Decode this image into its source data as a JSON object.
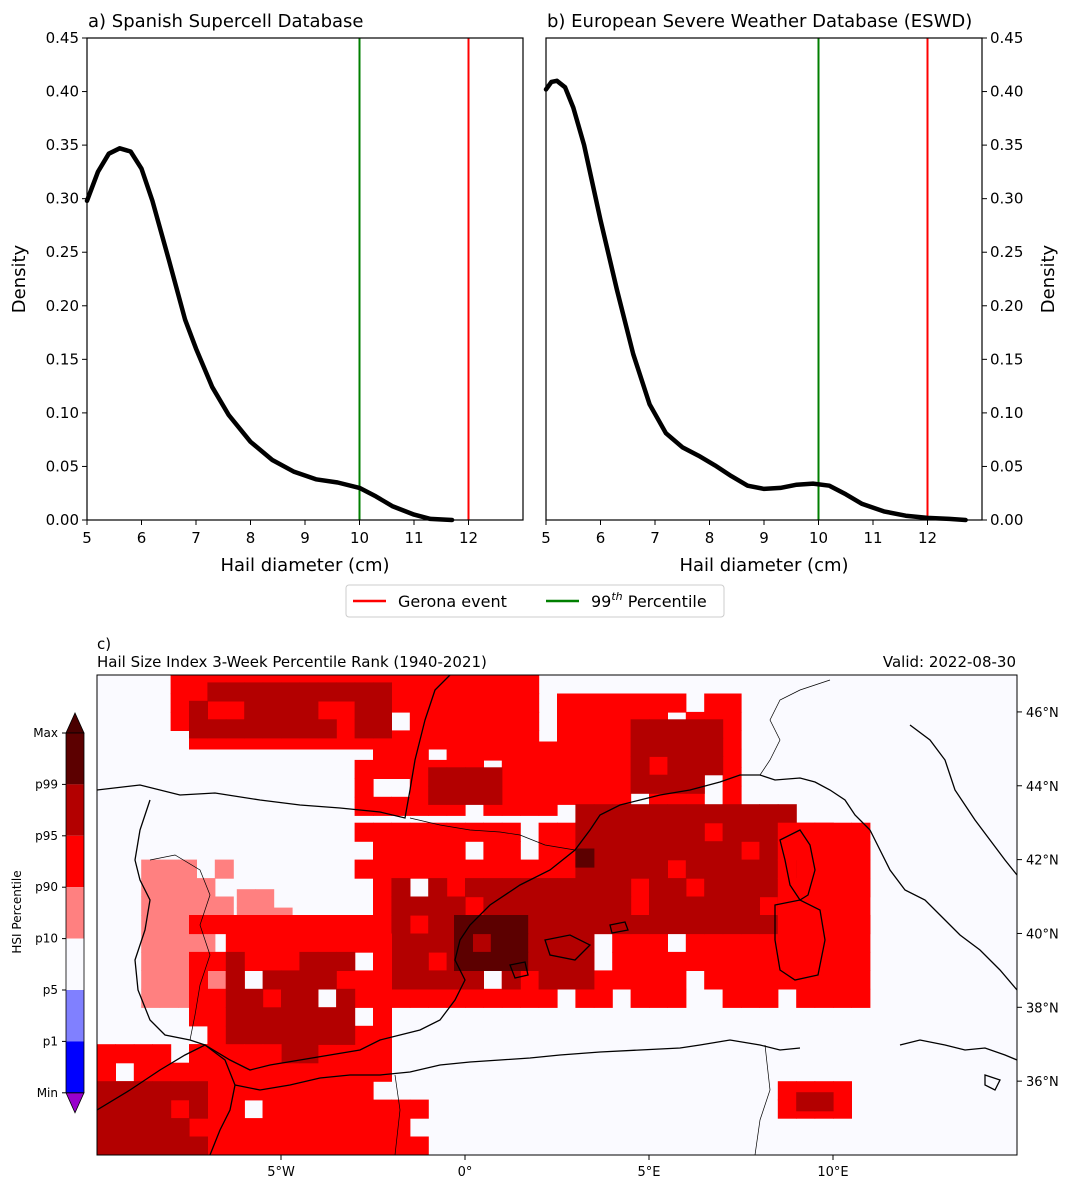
{
  "chart_data": [
    {
      "type": "line",
      "title": "a) Spanish Supercell Database",
      "xlabel": "Hail diameter (cm)",
      "ylabel": "Density",
      "xlim": [
        5,
        13
      ],
      "ylim": [
        0,
        0.45
      ],
      "xticks": [
        "5",
        "6",
        "7",
        "8",
        "9",
        "10",
        "11",
        "12"
      ],
      "yticks": [
        "0.00",
        "0.05",
        "0.10",
        "0.15",
        "0.20",
        "0.25",
        "0.30",
        "0.35",
        "0.40",
        "0.45"
      ],
      "series": [
        {
          "name": "Density",
          "color": "#000000",
          "x": [
            5.0,
            5.2,
            5.4,
            5.6,
            5.8,
            6.0,
            6.2,
            6.5,
            6.8,
            7.0,
            7.3,
            7.6,
            8.0,
            8.4,
            8.8,
            9.2,
            9.6,
            10.0,
            10.3,
            10.6,
            11.0,
            11.3,
            11.7
          ],
          "y": [
            0.298,
            0.325,
            0.342,
            0.347,
            0.344,
            0.328,
            0.298,
            0.243,
            0.187,
            0.16,
            0.124,
            0.098,
            0.073,
            0.056,
            0.045,
            0.038,
            0.035,
            0.03,
            0.022,
            0.013,
            0.005,
            0.001,
            0.0
          ]
        }
      ],
      "vlines": [
        {
          "name": "99th Percentile",
          "x": 10.0,
          "color": "#007f00"
        },
        {
          "name": "Gerona event",
          "x": 12.0,
          "color": "#ff0000"
        }
      ]
    },
    {
      "type": "line",
      "title": "b) European Severe Weather Database (ESWD)",
      "xlabel": "Hail diameter (cm)",
      "ylabel": "Density",
      "xlim": [
        5,
        13
      ],
      "ylim": [
        0,
        0.45
      ],
      "xticks": [
        "5",
        "6",
        "7",
        "8",
        "9",
        "10",
        "11",
        "12"
      ],
      "yticks": [
        "0.00",
        "0.05",
        "0.10",
        "0.15",
        "0.20",
        "0.25",
        "0.30",
        "0.35",
        "0.40",
        "0.45"
      ],
      "series": [
        {
          "name": "Density",
          "color": "#000000",
          "x": [
            5.0,
            5.1,
            5.2,
            5.35,
            5.5,
            5.7,
            6.0,
            6.3,
            6.6,
            6.9,
            7.2,
            7.5,
            7.8,
            8.1,
            8.4,
            8.7,
            9.0,
            9.3,
            9.6,
            9.9,
            10.2,
            10.5,
            10.8,
            11.2,
            11.6,
            12.0,
            12.4,
            12.7
          ],
          "y": [
            0.402,
            0.409,
            0.41,
            0.404,
            0.385,
            0.35,
            0.28,
            0.215,
            0.155,
            0.108,
            0.081,
            0.068,
            0.06,
            0.051,
            0.041,
            0.032,
            0.029,
            0.03,
            0.033,
            0.034,
            0.032,
            0.024,
            0.015,
            0.008,
            0.004,
            0.002,
            0.001,
            0.0
          ]
        }
      ],
      "vlines": [
        {
          "name": "99th Percentile",
          "x": 10.0,
          "color": "#007f00"
        },
        {
          "name": "Gerona event",
          "x": 12.0,
          "color": "#ff0000"
        }
      ]
    },
    {
      "type": "heatmap",
      "panel_label": "c)",
      "title": "Hail Size Index 3-Week Percentile Rank (1940-2021)",
      "valid": "Valid: 2022-08-30",
      "lon_range": [
        -10,
        15
      ],
      "lat_range": [
        34,
        47
      ],
      "lon_ticks": [
        {
          "value": -5,
          "label": "5°W"
        },
        {
          "value": 0,
          "label": "0°"
        },
        {
          "value": 5,
          "label": "5°E"
        },
        {
          "value": 10,
          "label": "10°E"
        }
      ],
      "lat_ticks": [
        {
          "value": 46,
          "label": "46°N"
        },
        {
          "value": 44,
          "label": "44°N"
        },
        {
          "value": 42,
          "label": "42°N"
        },
        {
          "value": 40,
          "label": "40°N"
        },
        {
          "value": 38,
          "label": "38°N"
        },
        {
          "value": 36,
          "label": "36°N"
        }
      ],
      "colorbar_label": "HSI Percentile",
      "colorbar_ticks": [
        "Max",
        "p99",
        "p95",
        "p90",
        "p10",
        "p5",
        "p1",
        "Min"
      ],
      "colorbar_colors": [
        "#5c0000",
        "#b30000",
        "#ff0000",
        "#ff8080",
        "#fafaff",
        "#8080ff",
        "#0000ff",
        "#000099"
      ],
      "colorbar_extend_colors": {
        "max": "#4a0000",
        "min": "#9900cc"
      },
      "regions": [
        {
          "category": "p95-p99",
          "color": "#ff0000",
          "lon": [
            -8.0,
            2.0
          ],
          "lat": [
            45.0,
            46.7
          ]
        },
        {
          "category": "p99-Max",
          "color": "#b30000",
          "lon": [
            -7.5,
            -2.0
          ],
          "lat": [
            45.3,
            46.5
          ]
        },
        {
          "category": "p95-p99",
          "color": "#ff0000",
          "lon": [
            -3.0,
            2.5
          ],
          "lat": [
            43.2,
            45.0
          ]
        },
        {
          "category": "p99-Max",
          "color": "#b30000",
          "lon": [
            -1.0,
            1.0
          ],
          "lat": [
            43.5,
            44.5
          ]
        },
        {
          "category": "p95-p99",
          "color": "#ff0000",
          "lon": [
            2.5,
            7.5
          ],
          "lat": [
            43.5,
            46.5
          ]
        },
        {
          "category": "p99-Max",
          "color": "#b30000",
          "lon": [
            4.5,
            7.0
          ],
          "lat": [
            43.8,
            45.8
          ]
        },
        {
          "category": "p95-p99",
          "color": "#ff0000",
          "lon": [
            -3.0,
            11.0
          ],
          "lat": [
            38.0,
            43.0
          ]
        },
        {
          "category": "p99-Max",
          "color": "#b30000",
          "lon": [
            3.0,
            9.0
          ],
          "lat": [
            40.0,
            43.5
          ]
        },
        {
          "category": "p99-Max",
          "color": "#b30000",
          "lon": [
            -2.0,
            3.5
          ],
          "lat": [
            38.5,
            41.5
          ]
        },
        {
          "category": "p95-p99",
          "color": "#ff0000",
          "lon": [
            8.5,
            11.0
          ],
          "lat": [
            39.0,
            43.0
          ]
        },
        {
          "category": "p90-p95",
          "color": "#ff8080",
          "lon": [
            -8.8,
            -6.5
          ],
          "lat": [
            38.0,
            42.0
          ]
        },
        {
          "category": "p90-p95",
          "color": "#ff8080",
          "lon": [
            -6.2,
            -4.8
          ],
          "lat": [
            40.2,
            41.2
          ]
        },
        {
          "category": "p95-p99",
          "color": "#ff0000",
          "lon": [
            -7.5,
            -2.0
          ],
          "lat": [
            34.5,
            40.5
          ]
        },
        {
          "category": "p99-Max",
          "color": "#b30000",
          "lon": [
            -6.5,
            -3.0
          ],
          "lat": [
            36.5,
            39.5
          ]
        },
        {
          "category": "p95-p99",
          "color": "#ff0000",
          "lon": [
            -10,
            -5.0
          ],
          "lat": [
            34.0,
            37.0
          ]
        },
        {
          "category": "p99-Max",
          "color": "#b30000",
          "lon": [
            -10,
            -7.0
          ],
          "lat": [
            34.0,
            36.0
          ]
        },
        {
          "category": "p95-p99",
          "color": "#ff0000",
          "lon": [
            -5.0,
            -1.0
          ],
          "lat": [
            34.0,
            35.5
          ]
        },
        {
          "category": "p95-p99",
          "color": "#ff0000",
          "lon": [
            8.5,
            10.5
          ],
          "lat": [
            35.0,
            36.0
          ]
        },
        {
          "category": "p99-Max",
          "color": "#b30000",
          "lon": [
            9.0,
            10.0
          ],
          "lat": [
            35.2,
            35.8
          ]
        },
        {
          "category": "Max",
          "color": "#5c0000",
          "lon": [
            -0.3,
            1.5
          ],
          "lat": [
            39.0,
            40.3
          ]
        },
        {
          "category": "Max",
          "color": "#5c0000",
          "lon": [
            3.0,
            3.5
          ],
          "lat": [
            41.8,
            42.2
          ]
        }
      ]
    }
  ],
  "legend": {
    "items": [
      {
        "label": "Gerona event",
        "color": "#ff0000"
      },
      {
        "label": "99",
        "sup": "th",
        "suffix": " Percentile",
        "color": "#007f00"
      }
    ]
  }
}
